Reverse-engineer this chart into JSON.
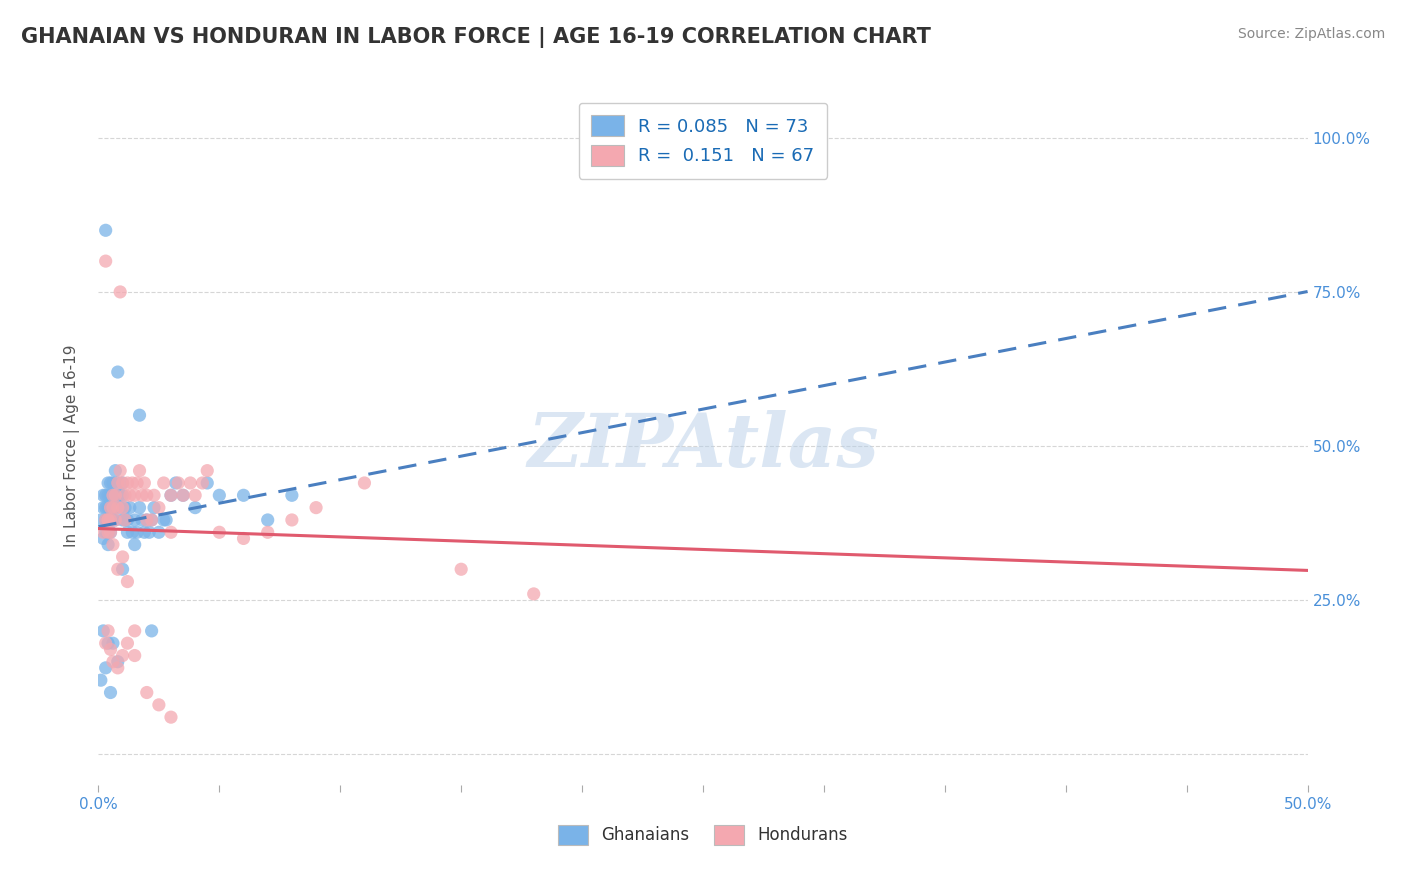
{
  "title": "GHANAIAN VS HONDURAN IN LABOR FORCE | AGE 16-19 CORRELATION CHART",
  "source": "Source: ZipAtlas.com",
  "ylabel": "In Labor Force | Age 16-19",
  "xlim": [
    0.0,
    0.5
  ],
  "ylim": [
    -0.05,
    1.05
  ],
  "xtick_positions": [
    0.0,
    0.05,
    0.1,
    0.15,
    0.2,
    0.25,
    0.3,
    0.35,
    0.4,
    0.45,
    0.5
  ],
  "xtick_labels": [
    "0.0%",
    "",
    "",
    "",
    "",
    "",
    "",
    "",
    "",
    "",
    "50.0%"
  ],
  "ytick_positions": [
    0.0,
    0.25,
    0.5,
    0.75,
    1.0
  ],
  "ytick_labels": [
    "",
    "25.0%",
    "50.0%",
    "75.0%",
    "100.0%"
  ],
  "title_color": "#333333",
  "title_fontsize": 15,
  "ghanaian_color": "#7ab3e8",
  "honduran_color": "#f4a8b0",
  "ghanaian_line_color": "#4a7fc0",
  "honduran_line_color": "#e05a6e",
  "R_ghanaian": 0.085,
  "N_ghanaian": 73,
  "R_honduran": 0.151,
  "N_honduran": 67,
  "background_color": "#ffffff",
  "grid_color": "#cccccc",
  "seed": 12345,
  "ghanaian_x": [
    0.001,
    0.002,
    0.002,
    0.002,
    0.003,
    0.003,
    0.003,
    0.003,
    0.003,
    0.004,
    0.004,
    0.004,
    0.004,
    0.004,
    0.004,
    0.005,
    0.005,
    0.005,
    0.005,
    0.005,
    0.006,
    0.006,
    0.006,
    0.006,
    0.007,
    0.007,
    0.007,
    0.008,
    0.008,
    0.008,
    0.009,
    0.009,
    0.01,
    0.01,
    0.01,
    0.011,
    0.011,
    0.012,
    0.012,
    0.013,
    0.014,
    0.015,
    0.015,
    0.016,
    0.017,
    0.018,
    0.019,
    0.02,
    0.021,
    0.022,
    0.023,
    0.025,
    0.027,
    0.028,
    0.03,
    0.032,
    0.035,
    0.04,
    0.045,
    0.05,
    0.06,
    0.07,
    0.08,
    0.017,
    0.022,
    0.01,
    0.008,
    0.006,
    0.005,
    0.004,
    0.003,
    0.002,
    0.001
  ],
  "ghanaian_y": [
    0.38,
    0.4,
    0.42,
    0.35,
    0.36,
    0.4,
    0.42,
    0.38,
    0.85,
    0.36,
    0.34,
    0.4,
    0.38,
    0.42,
    0.44,
    0.4,
    0.38,
    0.36,
    0.42,
    0.44,
    0.4,
    0.38,
    0.42,
    0.44,
    0.46,
    0.4,
    0.38,
    0.42,
    0.44,
    0.62,
    0.42,
    0.4,
    0.38,
    0.42,
    0.44,
    0.38,
    0.4,
    0.36,
    0.38,
    0.4,
    0.36,
    0.38,
    0.34,
    0.36,
    0.4,
    0.38,
    0.36,
    0.38,
    0.36,
    0.38,
    0.4,
    0.36,
    0.38,
    0.38,
    0.42,
    0.44,
    0.42,
    0.4,
    0.44,
    0.42,
    0.42,
    0.38,
    0.42,
    0.55,
    0.2,
    0.3,
    0.15,
    0.18,
    0.1,
    0.18,
    0.14,
    0.2,
    0.12
  ],
  "honduran_x": [
    0.002,
    0.003,
    0.003,
    0.004,
    0.004,
    0.005,
    0.005,
    0.006,
    0.006,
    0.007,
    0.007,
    0.008,
    0.008,
    0.009,
    0.009,
    0.01,
    0.01,
    0.011,
    0.011,
    0.012,
    0.013,
    0.014,
    0.015,
    0.016,
    0.017,
    0.018,
    0.019,
    0.02,
    0.022,
    0.023,
    0.025,
    0.027,
    0.03,
    0.033,
    0.035,
    0.038,
    0.04,
    0.043,
    0.045,
    0.05,
    0.06,
    0.07,
    0.08,
    0.09,
    0.11,
    0.15,
    0.18,
    0.03,
    0.02,
    0.015,
    0.012,
    0.01,
    0.008,
    0.006,
    0.005,
    0.004,
    0.003,
    0.004,
    0.005,
    0.006,
    0.008,
    0.01,
    0.012,
    0.015,
    0.02,
    0.025,
    0.03
  ],
  "honduran_y": [
    0.36,
    0.8,
    0.38,
    0.36,
    0.38,
    0.4,
    0.38,
    0.42,
    0.4,
    0.38,
    0.42,
    0.44,
    0.4,
    0.46,
    0.75,
    0.44,
    0.4,
    0.38,
    0.42,
    0.44,
    0.42,
    0.44,
    0.42,
    0.44,
    0.46,
    0.42,
    0.44,
    0.42,
    0.38,
    0.42,
    0.4,
    0.44,
    0.42,
    0.44,
    0.42,
    0.44,
    0.42,
    0.44,
    0.46,
    0.36,
    0.35,
    0.36,
    0.38,
    0.4,
    0.44,
    0.3,
    0.26,
    0.36,
    0.38,
    0.2,
    0.18,
    0.16,
    0.14,
    0.15,
    0.17,
    0.2,
    0.18,
    0.38,
    0.36,
    0.34,
    0.3,
    0.32,
    0.28,
    0.16,
    0.1,
    0.08,
    0.06
  ]
}
